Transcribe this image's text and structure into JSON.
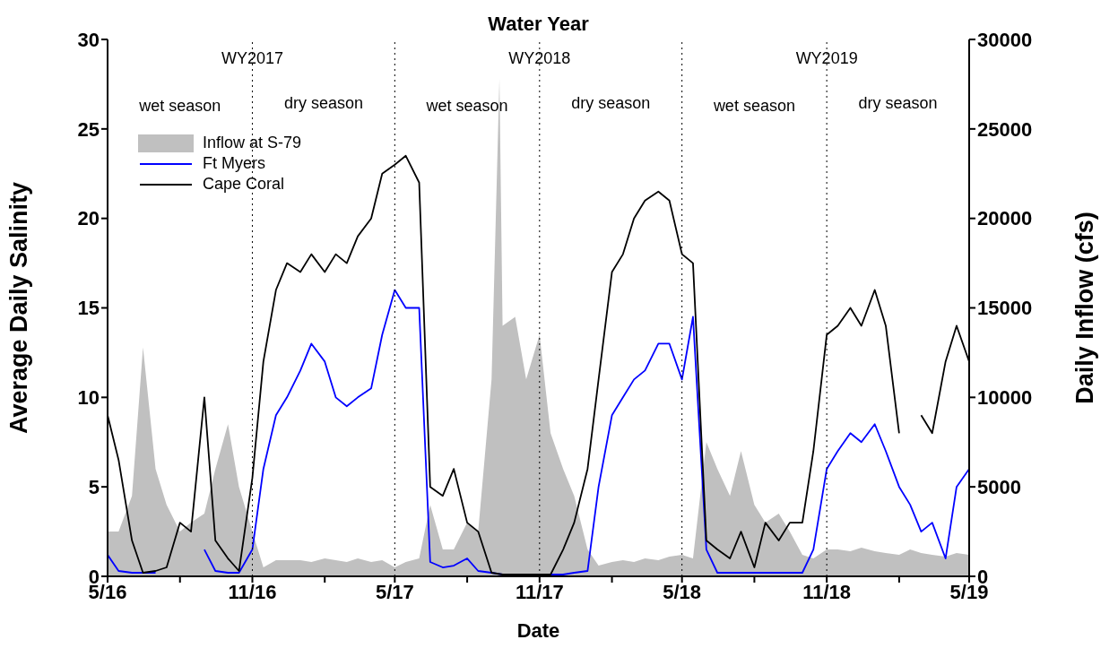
{
  "chart_data": {
    "type": "line",
    "title": "Water Year",
    "xlabel": "Date",
    "ylabel": "Average Daily Salinity",
    "y2label": "Daily Inflow (cfs)",
    "xlim": [
      "2016-05-01",
      "2019-05-01"
    ],
    "xticks": [
      {
        "value": "2016-05-01",
        "label": "5/16"
      },
      {
        "value": "2016-08-01",
        "label": null
      },
      {
        "value": "2016-11-01",
        "label": "11/16"
      },
      {
        "value": "2017-02-01",
        "label": null
      },
      {
        "value": "2017-05-01",
        "label": "5/17"
      },
      {
        "value": "2017-08-01",
        "label": null
      },
      {
        "value": "2017-11-01",
        "label": "11/17"
      },
      {
        "value": "2018-02-01",
        "label": null
      },
      {
        "value": "2018-05-01",
        "label": "5/18"
      },
      {
        "value": "2018-08-01",
        "label": null
      },
      {
        "value": "2018-11-01",
        "label": "11/18"
      },
      {
        "value": "2019-02-01",
        "label": null
      },
      {
        "value": "2019-05-01",
        "label": "5/19"
      }
    ],
    "ylim": [
      0,
      30
    ],
    "yticks": [
      0,
      5,
      10,
      15,
      20,
      25,
      30
    ],
    "y2lim": [
      0,
      30000
    ],
    "y2ticks": [
      0,
      5000,
      10000,
      15000,
      20000,
      25000,
      30000
    ],
    "legend": "top left",
    "grid": false,
    "marker": "none",
    "line_style": "solid",
    "ref_lines": [
      {
        "axis": "x",
        "value": "2016-11-01",
        "label": "WY2017",
        "color": "#000000",
        "line_style": "dotted"
      },
      {
        "axis": "x",
        "value": "2017-05-01",
        "label": null,
        "color": "#000000",
        "line_style": "dotted"
      },
      {
        "axis": "x",
        "value": "2017-11-01",
        "label": "WY2018",
        "color": "#000000",
        "line_style": "dotted"
      },
      {
        "axis": "x",
        "value": "2018-05-01",
        "label": null,
        "color": "#000000",
        "line_style": "dotted"
      },
      {
        "axis": "x",
        "value": "2018-11-01",
        "label": "WY2019",
        "color": "#000000",
        "line_style": "dotted"
      }
    ],
    "annotations": [
      "wet season",
      "dry season",
      "wet season",
      "dry season",
      "wet season",
      "dry season"
    ],
    "series": [
      {
        "name": "Inflow at S-79",
        "type": "area",
        "axis": "y2",
        "color": "#c0c0c0",
        "x": [
          "2016-05-01",
          "2016-05-15",
          "2016-06-01",
          "2016-06-15",
          "2016-07-01",
          "2016-07-15",
          "2016-08-01",
          "2016-08-15",
          "2016-09-01",
          "2016-09-15",
          "2016-10-01",
          "2016-10-15",
          "2016-11-01",
          "2016-11-15",
          "2016-12-01",
          "2016-12-15",
          "2017-01-01",
          "2017-01-15",
          "2017-02-01",
          "2017-02-15",
          "2017-03-01",
          "2017-03-15",
          "2017-04-01",
          "2017-04-15",
          "2017-05-01",
          "2017-05-15",
          "2017-06-01",
          "2017-06-15",
          "2017-07-01",
          "2017-07-15",
          "2017-08-01",
          "2017-08-15",
          "2017-09-01",
          "2017-09-11",
          "2017-09-15",
          "2017-10-01",
          "2017-10-15",
          "2017-11-01",
          "2017-11-15",
          "2017-12-01",
          "2017-12-15",
          "2018-01-01",
          "2018-01-15",
          "2018-02-01",
          "2018-02-15",
          "2018-03-01",
          "2018-03-15",
          "2018-04-01",
          "2018-04-15",
          "2018-05-01",
          "2018-05-15",
          "2018-06-01",
          "2018-06-15",
          "2018-07-01",
          "2018-07-15",
          "2018-08-01",
          "2018-08-15",
          "2018-09-01",
          "2018-09-15",
          "2018-10-01",
          "2018-10-15",
          "2018-11-01",
          "2018-11-15",
          "2018-12-01",
          "2018-12-15",
          "2019-01-01",
          "2019-01-15",
          "2019-02-01",
          "2019-02-15",
          "2019-03-01",
          "2019-03-15",
          "2019-04-01",
          "2019-04-15",
          "2019-05-01"
        ],
        "values": [
          2500,
          2500,
          4500,
          12800,
          6000,
          4000,
          2500,
          3000,
          3500,
          6000,
          8500,
          5000,
          2500,
          500,
          900,
          900,
          900,
          800,
          1000,
          900,
          800,
          1000,
          800,
          900,
          500,
          800,
          1000,
          4000,
          1500,
          1500,
          3000,
          2500,
          11000,
          27800,
          14000,
          14500,
          11000,
          13500,
          8000,
          6000,
          4500,
          1500,
          600,
          800,
          900,
          800,
          1000,
          900,
          1100,
          1200,
          1000,
          7500,
          6000,
          4500,
          7000,
          4000,
          3000,
          3500,
          2500,
          1200,
          1000,
          1500,
          1500,
          1400,
          1600,
          1400,
          1300,
          1200,
          1500,
          1300,
          1200,
          1100,
          1300,
          1200
        ]
      },
      {
        "name": "Ft Myers",
        "color": "#0000ff",
        "x": [
          "2016-05-01",
          "2016-05-15",
          "2016-06-01",
          "2016-06-15",
          "2016-07-01",
          "2016-07-15",
          "2016-08-01",
          "2016-08-15",
          "2016-09-01",
          "2016-09-15",
          "2016-10-01",
          "2016-10-15",
          "2016-11-01",
          "2016-11-15",
          "2016-12-01",
          "2016-12-15",
          "2017-01-01",
          "2017-01-15",
          "2017-02-01",
          "2017-02-15",
          "2017-03-01",
          "2017-03-15",
          "2017-04-01",
          "2017-04-15",
          "2017-05-01",
          "2017-05-15",
          "2017-06-01",
          "2017-06-15",
          "2017-07-01",
          "2017-07-15",
          "2017-08-01",
          "2017-08-15",
          "2017-09-01",
          "2017-09-15",
          "2017-10-01",
          "2017-10-15",
          "2017-11-01",
          "2017-11-15",
          "2017-12-01",
          "2017-12-15",
          "2018-01-01",
          "2018-01-15",
          "2018-02-01",
          "2018-02-15",
          "2018-03-01",
          "2018-03-15",
          "2018-04-01",
          "2018-04-15",
          "2018-05-01",
          "2018-05-15",
          "2018-06-01",
          "2018-06-15",
          "2018-07-01",
          "2018-07-15",
          "2018-08-01",
          "2018-08-15",
          "2018-09-01",
          "2018-09-15",
          "2018-10-01",
          "2018-10-15",
          "2018-11-01",
          "2018-11-15",
          "2018-12-01",
          "2018-12-15",
          "2019-01-01",
          "2019-01-15",
          "2019-02-01",
          "2019-02-15",
          "2019-03-01",
          "2019-03-15",
          "2019-04-01",
          "2019-04-15",
          "2019-05-01"
        ],
        "values": [
          1.2,
          0.3,
          0.2,
          0.2,
          0.2,
          null,
          null,
          null,
          1.5,
          0.3,
          0.2,
          0.2,
          1.5,
          6,
          9,
          10,
          11.5,
          13,
          12,
          10,
          9.5,
          10,
          10.5,
          13.5,
          16,
          15,
          15,
          0.8,
          0.5,
          0.6,
          1.0,
          0.3,
          0.2,
          0.1,
          0.1,
          0.1,
          0.1,
          0.1,
          0.1,
          0.2,
          0.3,
          5,
          9,
          10,
          11,
          11.5,
          13,
          13,
          11,
          14.5,
          1.5,
          0.2,
          0.2,
          0.2,
          0.2,
          0.2,
          0.2,
          0.2,
          0.2,
          1.5,
          6,
          7,
          8,
          7.5,
          8.5,
          7,
          5,
          4,
          2.5,
          3,
          1,
          5,
          6
        ]
      },
      {
        "name": "Cape Coral",
        "color": "#000000",
        "x": [
          "2016-05-01",
          "2016-05-15",
          "2016-06-01",
          "2016-06-15",
          "2016-07-01",
          "2016-07-15",
          "2016-08-01",
          "2016-08-15",
          "2016-09-01",
          "2016-09-15",
          "2016-10-01",
          "2016-10-15",
          "2016-11-01",
          "2016-11-15",
          "2016-12-01",
          "2016-12-15",
          "2017-01-01",
          "2017-01-15",
          "2017-02-01",
          "2017-02-15",
          "2017-03-01",
          "2017-03-15",
          "2017-04-01",
          "2017-04-15",
          "2017-05-01",
          "2017-05-15",
          "2017-06-01",
          "2017-06-15",
          "2017-07-01",
          "2017-07-15",
          "2017-08-01",
          "2017-08-15",
          "2017-09-01",
          "2017-09-15",
          "2017-10-01",
          "2017-10-15",
          "2017-11-01",
          "2017-11-15",
          "2017-12-01",
          "2017-12-15",
          "2018-01-01",
          "2018-01-15",
          "2018-02-01",
          "2018-02-15",
          "2018-03-01",
          "2018-03-15",
          "2018-04-01",
          "2018-04-15",
          "2018-05-01",
          "2018-05-15",
          "2018-06-01",
          "2018-06-15",
          "2018-07-01",
          "2018-07-15",
          "2018-08-01",
          "2018-08-15",
          "2018-09-01",
          "2018-09-15",
          "2018-10-01",
          "2018-10-15",
          "2018-11-01",
          "2018-11-15",
          "2018-12-01",
          "2018-12-15",
          "2019-01-01",
          "2019-01-15",
          "2019-02-01",
          "2019-02-15",
          "2019-03-01",
          "2019-03-15",
          "2019-04-01",
          "2019-04-15",
          "2019-05-01"
        ],
        "values": [
          9,
          6.5,
          2,
          0.2,
          0.3,
          0.5,
          3,
          2.5,
          10,
          2,
          1,
          0.3,
          5.5,
          12,
          16,
          17.5,
          17,
          18,
          17,
          18,
          17.5,
          19,
          20,
          22.5,
          23,
          23.5,
          22,
          5,
          4.5,
          6,
          3,
          2.5,
          0.2,
          0.1,
          0.1,
          0.1,
          0.1,
          0.1,
          1.5,
          3,
          6,
          11,
          17,
          18,
          20,
          21,
          21.5,
          21,
          18,
          17.5,
          2,
          1.5,
          1,
          2.5,
          0.5,
          3,
          2,
          3,
          3,
          7,
          13.5,
          14,
          15,
          14,
          16,
          14,
          8,
          null,
          9,
          8,
          12,
          14,
          12
        ]
      }
    ]
  }
}
